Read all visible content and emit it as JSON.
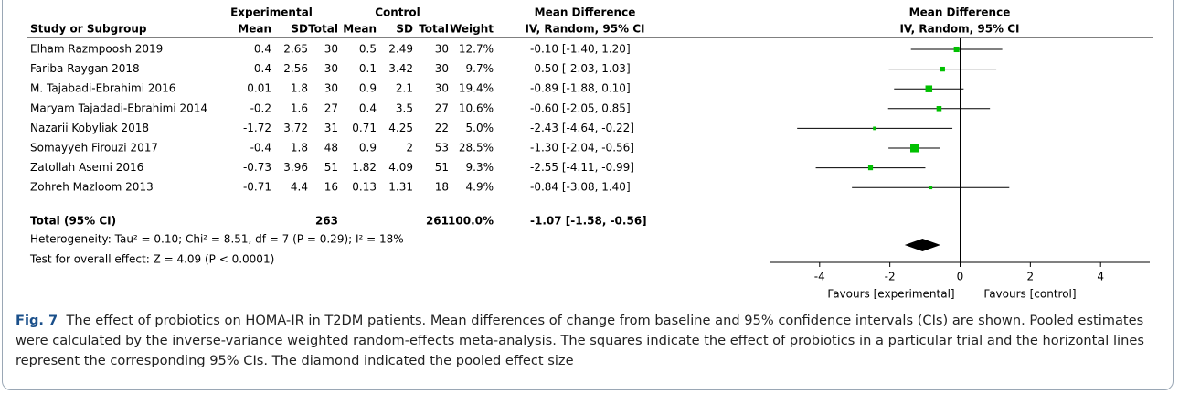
{
  "header": {
    "group1": "Experimental",
    "group2": "Control",
    "md_col": "Mean Difference",
    "md_sub": "IV, Random, 95% CI",
    "plot_title": "Mean Difference",
    "plot_sub": "IV, Random, 95% CI",
    "columns": [
      "Study or Subgroup",
      "Mean",
      "SD",
      "Total",
      "Mean",
      "SD",
      "Total",
      "Weight"
    ]
  },
  "rows": [
    {
      "study": "Elham Razmpoosh 2019",
      "exp_mean": 0.4,
      "exp_sd": 2.65,
      "exp_total": 30,
      "ctl_mean": 0.5,
      "ctl_sd": 2.49,
      "ctl_total": 30,
      "weight": 12.7,
      "weight_label": "12.7%",
      "ci": {
        "md": -0.1,
        "lo": -1.4,
        "hi": 1.2,
        "label": "-0.10 [-1.40, 1.20]"
      }
    },
    {
      "study": "Fariba Raygan 2018",
      "exp_mean": -0.4,
      "exp_sd": 2.56,
      "exp_total": 30,
      "ctl_mean": 0.1,
      "ctl_sd": 3.42,
      "ctl_total": 30,
      "weight": 9.7,
      "weight_label": "9.7%",
      "ci": {
        "md": -0.5,
        "lo": -2.03,
        "hi": 1.03,
        "label": "-0.50 [-2.03, 1.03]"
      }
    },
    {
      "study": "M. Tajabadi-Ebrahimi 2016",
      "exp_mean": 0.01,
      "exp_sd": 1.8,
      "exp_total": 30,
      "ctl_mean": 0.9,
      "ctl_sd": 2.1,
      "ctl_total": 30,
      "weight": 19.4,
      "weight_label": "19.4%",
      "ci": {
        "md": -0.89,
        "lo": -1.88,
        "hi": 0.1,
        "label": "-0.89 [-1.88, 0.10]"
      }
    },
    {
      "study": "Maryam Tajadadi-Ebrahimi 2014",
      "exp_mean": -0.2,
      "exp_sd": 1.6,
      "exp_total": 27,
      "ctl_mean": 0.4,
      "ctl_sd": 3.5,
      "ctl_total": 27,
      "weight": 10.6,
      "weight_label": "10.6%",
      "ci": {
        "md": -0.6,
        "lo": -2.05,
        "hi": 0.85,
        "label": "-0.60 [-2.05, 0.85]"
      }
    },
    {
      "study": "Nazarii Kobyliak 2018",
      "exp_mean": -1.72,
      "exp_sd": 3.72,
      "exp_total": 31,
      "ctl_mean": 0.71,
      "ctl_sd": 4.25,
      "ctl_total": 22,
      "weight": 5.0,
      "weight_label": "5.0%",
      "ci": {
        "md": -2.43,
        "lo": -4.64,
        "hi": -0.22,
        "label": "-2.43 [-4.64, -0.22]"
      }
    },
    {
      "study": "Somayyeh Firouzi 2017",
      "exp_mean": -0.4,
      "exp_sd": 1.8,
      "exp_total": 48,
      "ctl_mean": 0.9,
      "ctl_sd": 2,
      "ctl_total": 53,
      "weight": 28.5,
      "weight_label": "28.5%",
      "ci": {
        "md": -1.3,
        "lo": -2.04,
        "hi": -0.56,
        "label": "-1.30 [-2.04, -0.56]"
      }
    },
    {
      "study": "Zatollah Asemi 2016",
      "exp_mean": -0.73,
      "exp_sd": 3.96,
      "exp_total": 51,
      "ctl_mean": 1.82,
      "ctl_sd": 4.09,
      "ctl_total": 51,
      "weight": 9.3,
      "weight_label": "9.3%",
      "ci": {
        "md": -2.55,
        "lo": -4.11,
        "hi": -0.99,
        "label": "-2.55 [-4.11, -0.99]"
      }
    },
    {
      "study": "Zohreh Mazloom 2013",
      "exp_mean": -0.71,
      "exp_sd": 4.4,
      "exp_total": 16,
      "ctl_mean": 0.13,
      "ctl_sd": 1.31,
      "ctl_total": 18,
      "weight": 4.9,
      "weight_label": "4.9%",
      "ci": {
        "md": -0.84,
        "lo": -3.08,
        "hi": 1.4,
        "label": "-0.84 [-3.08, 1.40]"
      }
    }
  ],
  "total": {
    "study": "Total (95% CI)",
    "exp_total": 263,
    "ctl_total": 261,
    "weight": 100.0,
    "weight_label": "100.0%",
    "ci": {
      "md": -1.07,
      "lo": -1.58,
      "hi": -0.56,
      "label": "-1.07 [-1.58, -0.56]"
    }
  },
  "heterogeneity": "Heterogeneity: Tau² = 0.10; Chi² = 8.51, df = 7 (P = 0.29); I² = 18%",
  "overall": "Test for overall effect: Z = 4.09 (P < 0.0001)",
  "plot": {
    "xlim": [
      -5.4,
      5.4
    ],
    "xticks": [
      -4,
      -2,
      0,
      2,
      4
    ],
    "square_color": "#00c000",
    "favours_left": "Favours [experimental]",
    "favours_right": "Favours [control]"
  },
  "caption": {
    "label": "Fig. 7",
    "text": "The effect of probiotics on HOMA-IR in T2DM patients. Mean differences of change from baseline and 95% confidence intervals (CIs) are shown. Pooled estimates were calculated by the inverse-variance weighted random-effects meta-analysis. The squares indicate the effect of probiotics in a particular trial and the horizontal lines represent the corresponding 95% CIs. The diamond indicated the pooled effect size"
  }
}
